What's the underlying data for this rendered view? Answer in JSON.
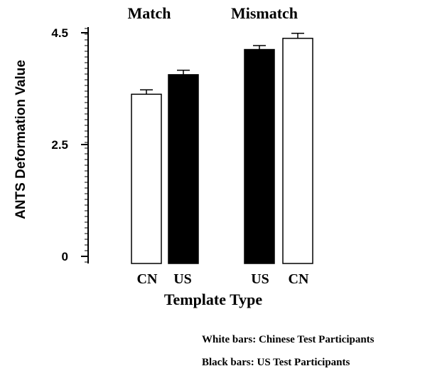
{
  "chart_data": {
    "type": "bar",
    "title": "",
    "xlabel": "Template Type",
    "ylabel": "ANTS Deformation Value",
    "yticks": [
      "0",
      "2.5",
      "4.5"
    ],
    "ylim": [
      0,
      5
    ],
    "groups": [
      {
        "label": "Match",
        "bars": [
          {
            "category": "CN",
            "series": "Chinese Test Participants",
            "value": 3.4,
            "error": 0.08
          },
          {
            "category": "US",
            "series": "US Test Participants",
            "value": 3.75,
            "error": 0.08
          }
        ]
      },
      {
        "label": "Mismatch",
        "bars": [
          {
            "category": "US",
            "series": "US Test Participants",
            "value": 4.2,
            "error": 0.07
          },
          {
            "category": "CN",
            "series": "Chinese Test Participants",
            "value": 4.4,
            "error": 0.09
          }
        ]
      }
    ],
    "series": [
      {
        "name": "Chinese Test Participants",
        "color": "#ffffff"
      },
      {
        "name": "US Test Participants",
        "color": "#000000"
      }
    ],
    "legend_notes": [
      "White bars: Chinese Test Participants",
      "Black bars: US Test Participants"
    ],
    "grid": false,
    "legend_placement": "bottom-right"
  }
}
